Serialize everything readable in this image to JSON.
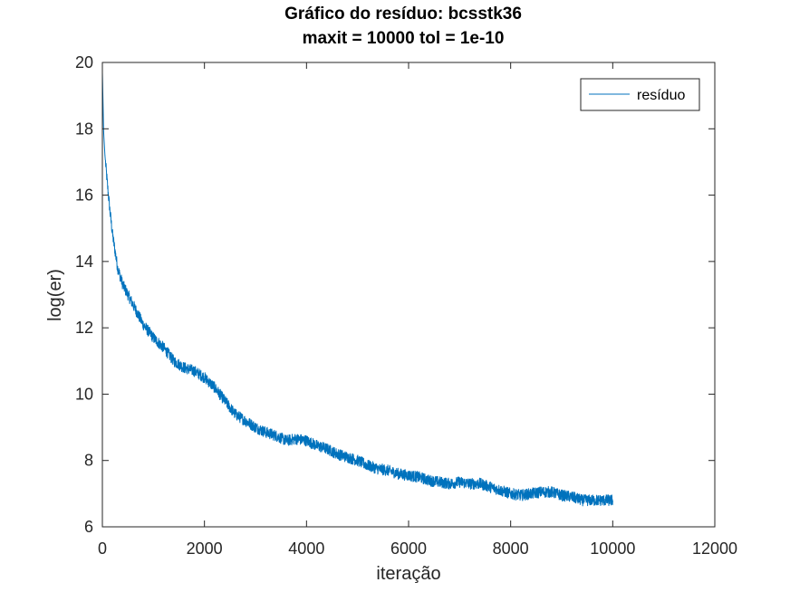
{
  "chart_data": {
    "type": "line",
    "title": "Gráfico do resíduo:  bcsstk36",
    "subtitle": "maxit = 10000 tol = 1e-10",
    "xlabel": "iteração",
    "ylabel": "log(er)",
    "xlim": [
      0,
      12000
    ],
    "ylim": [
      6,
      20
    ],
    "x_ticks": [
      "0",
      "2000",
      "4000",
      "6000",
      "8000",
      "10000",
      "12000"
    ],
    "y_ticks": [
      "6",
      "8",
      "10",
      "12",
      "14",
      "16",
      "18",
      "20"
    ],
    "x_tick_values": [
      0,
      2000,
      4000,
      6000,
      8000,
      10000,
      12000
    ],
    "y_tick_values": [
      6,
      8,
      10,
      12,
      14,
      16,
      18,
      20
    ],
    "grid": false,
    "legend": {
      "position": "top-right",
      "entries": [
        "resíduo"
      ]
    },
    "series": [
      {
        "name": "resíduo",
        "color": "#0072BD",
        "x": [
          0,
          25,
          50,
          100,
          150,
          200,
          300,
          400,
          500,
          600,
          700,
          800,
          1000,
          1200,
          1400,
          1600,
          1800,
          2000,
          2200,
          2400,
          2600,
          2800,
          3000,
          3200,
          3400,
          3600,
          3800,
          4000,
          4200,
          4400,
          4600,
          4800,
          5000,
          5200,
          5400,
          5600,
          5800,
          6000,
          6200,
          6400,
          6600,
          6800,
          7000,
          7200,
          7400,
          7600,
          7800,
          8000,
          8200,
          8400,
          8600,
          8800,
          9000,
          9200,
          9400,
          9600,
          9800,
          10000
        ],
        "y": [
          19.7,
          17.9,
          17.2,
          16.3,
          15.5,
          14.8,
          13.8,
          13.3,
          13.0,
          12.7,
          12.4,
          12.1,
          11.7,
          11.4,
          11.0,
          10.8,
          10.7,
          10.5,
          10.2,
          9.8,
          9.4,
          9.2,
          9.0,
          8.85,
          8.75,
          8.6,
          8.65,
          8.6,
          8.45,
          8.35,
          8.2,
          8.1,
          8.0,
          7.85,
          7.75,
          7.7,
          7.6,
          7.55,
          7.5,
          7.4,
          7.35,
          7.3,
          7.35,
          7.3,
          7.3,
          7.2,
          7.1,
          7.0,
          6.95,
          7.0,
          7.05,
          7.05,
          6.95,
          6.9,
          6.8,
          6.8,
          6.8,
          6.8
        ],
        "noise_amplitude": 0.17
      }
    ]
  }
}
